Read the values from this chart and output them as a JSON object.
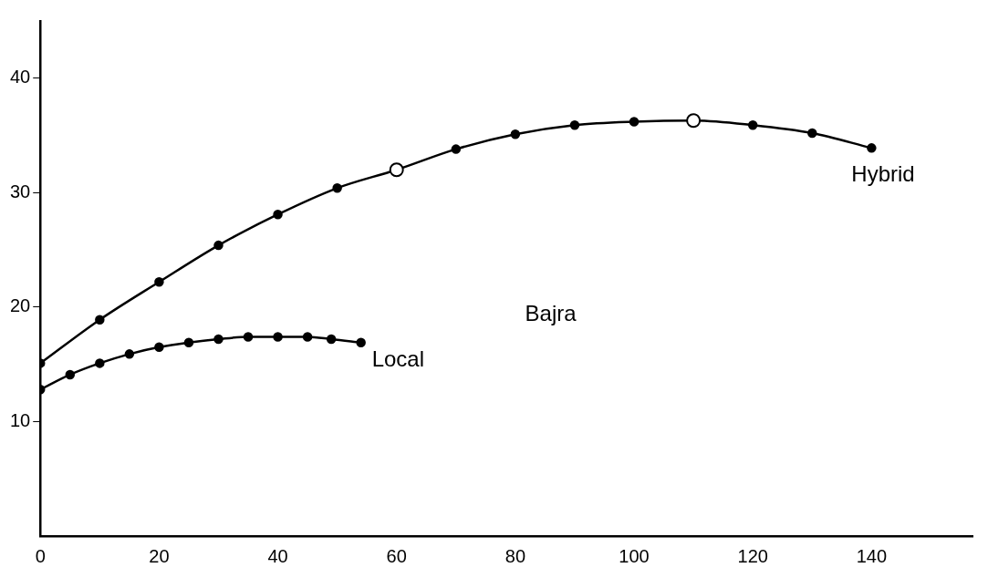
{
  "chart_data": {
    "type": "line",
    "annotations": [
      "Bajra"
    ],
    "series": [
      {
        "name": "Hybrid",
        "color": "#000000",
        "x": [
          0,
          10,
          20,
          30,
          40,
          50,
          60,
          70,
          80,
          90,
          100,
          110,
          120,
          130,
          140
        ],
        "values": [
          15.1,
          18.9,
          22.2,
          25.4,
          28.1,
          30.4,
          32.0,
          33.8,
          35.1,
          35.9,
          36.2,
          36.3,
          35.9,
          35.2,
          33.9
        ]
      },
      {
        "name": "Local",
        "color": "#000000",
        "x": [
          0,
          5,
          10,
          15,
          20,
          25,
          30,
          35,
          40,
          45,
          49,
          54
        ],
        "values": [
          12.8,
          14.1,
          15.1,
          15.9,
          16.5,
          16.9,
          17.2,
          17.4,
          17.4,
          17.4,
          17.2,
          16.9
        ]
      },
      {
        "type": "scatter",
        "color": "#000000",
        "x": [
          60,
          110
        ],
        "values": [
          32.0,
          36.3
        ]
      }
    ],
    "xlim": [
      0,
      157
    ],
    "xticks": [
      0,
      20,
      40,
      60,
      80,
      100,
      120,
      140
    ],
    "ylim": [
      0,
      45
    ],
    "yticks": [
      10,
      20,
      30,
      40
    ],
    "grid": false,
    "legend": false,
    "marker": "circle",
    "line_style": "solid"
  }
}
